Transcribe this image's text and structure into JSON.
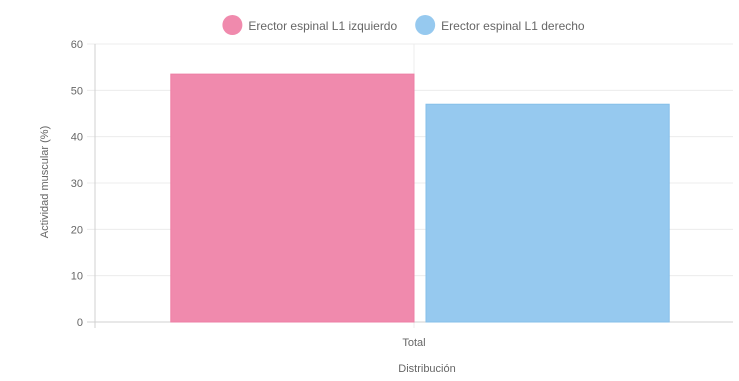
{
  "chart_data": {
    "type": "bar",
    "categories": [
      "Total"
    ],
    "series": [
      {
        "name": "Erector espinal L1 izquierdo",
        "values": [
          53.5
        ],
        "color": "#f08aad",
        "border": "#ee7fa5"
      },
      {
        "name": "Erector espinal L1 derecho",
        "values": [
          47
        ],
        "color": "#96c9ef",
        "border": "#86bfe9"
      }
    ],
    "xlabel": "Distribución",
    "ylabel": "Actividad muscular (%)",
    "ylim": [
      0,
      60
    ],
    "yticks": [
      "0",
      "10",
      "20",
      "30",
      "40",
      "50",
      "60"
    ],
    "grid": true,
    "legend_position": "top"
  }
}
